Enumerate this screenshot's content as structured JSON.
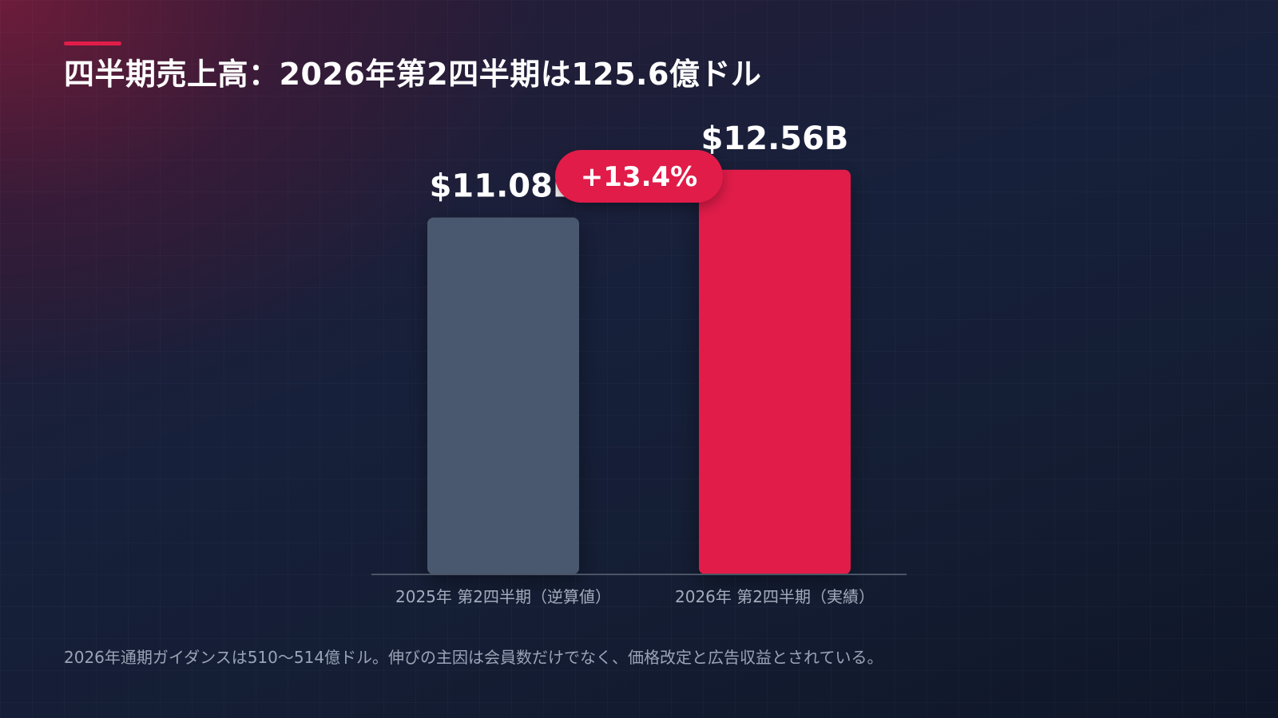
{
  "title": "四半期売上高：2026年第2四半期は125.6億ドル",
  "footnote": "2026年通期ガイダンスは510〜514億ドル。伸びの主因は会員数だけでなく、価格改定と広告収益とされている。",
  "colors": {
    "accent": "#e11d48",
    "bar_prior": "#4a596e",
    "bar_current": "#e11d48",
    "baseline": "#4b5566",
    "label_text": "#ffffff",
    "category_text": "#a3acbc"
  },
  "chart_data": {
    "type": "bar",
    "categories": [
      "2025年 第2四半期（逆算値）",
      "2026年 第2四半期（実績）"
    ],
    "values": [
      11.08,
      12.56
    ],
    "value_labels": [
      "$11.08B",
      "$12.56B"
    ],
    "unit": "B USD",
    "title": "四半期売上高：2026年第2四半期は125.6億ドル",
    "xlabel": "",
    "ylabel": "",
    "ylim": [
      0,
      13.62
    ],
    "grid": false,
    "legend": "none",
    "annotations": [
      {
        "type": "change-badge",
        "text": "+13.4%"
      }
    ]
  }
}
